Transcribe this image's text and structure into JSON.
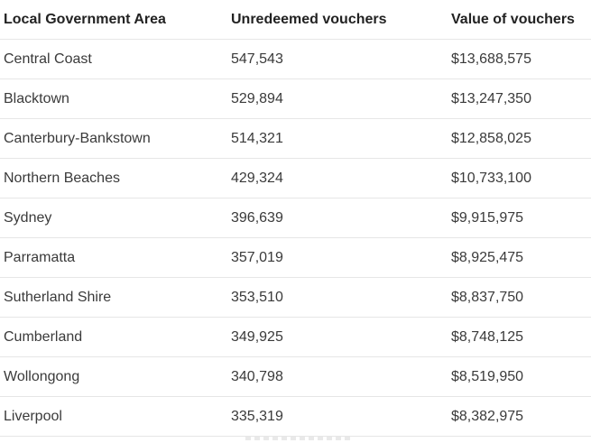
{
  "table": {
    "headers": [
      "Local Government Area",
      "Unredeemed vouchers",
      "Value of vouchers"
    ],
    "rows": [
      [
        "Central Coast",
        "547,543",
        "$13,688,575"
      ],
      [
        "Blacktown",
        "529,894",
        "$13,247,350"
      ],
      [
        "Canterbury-Bankstown",
        "514,321",
        "$12,858,025"
      ],
      [
        "Northern Beaches",
        "429,324",
        "$10,733,100"
      ],
      [
        "Sydney",
        "396,639",
        "$9,915,975"
      ],
      [
        "Parramatta",
        "357,019",
        "$8,925,475"
      ],
      [
        "Sutherland Shire",
        "353,510",
        "$8,837,750"
      ],
      [
        "Cumberland",
        "349,925",
        "$8,748,125"
      ],
      [
        "Wollongong",
        "340,798",
        "$8,519,950"
      ],
      [
        "Liverpool",
        "335,319",
        "$8,382,975"
      ]
    ]
  }
}
